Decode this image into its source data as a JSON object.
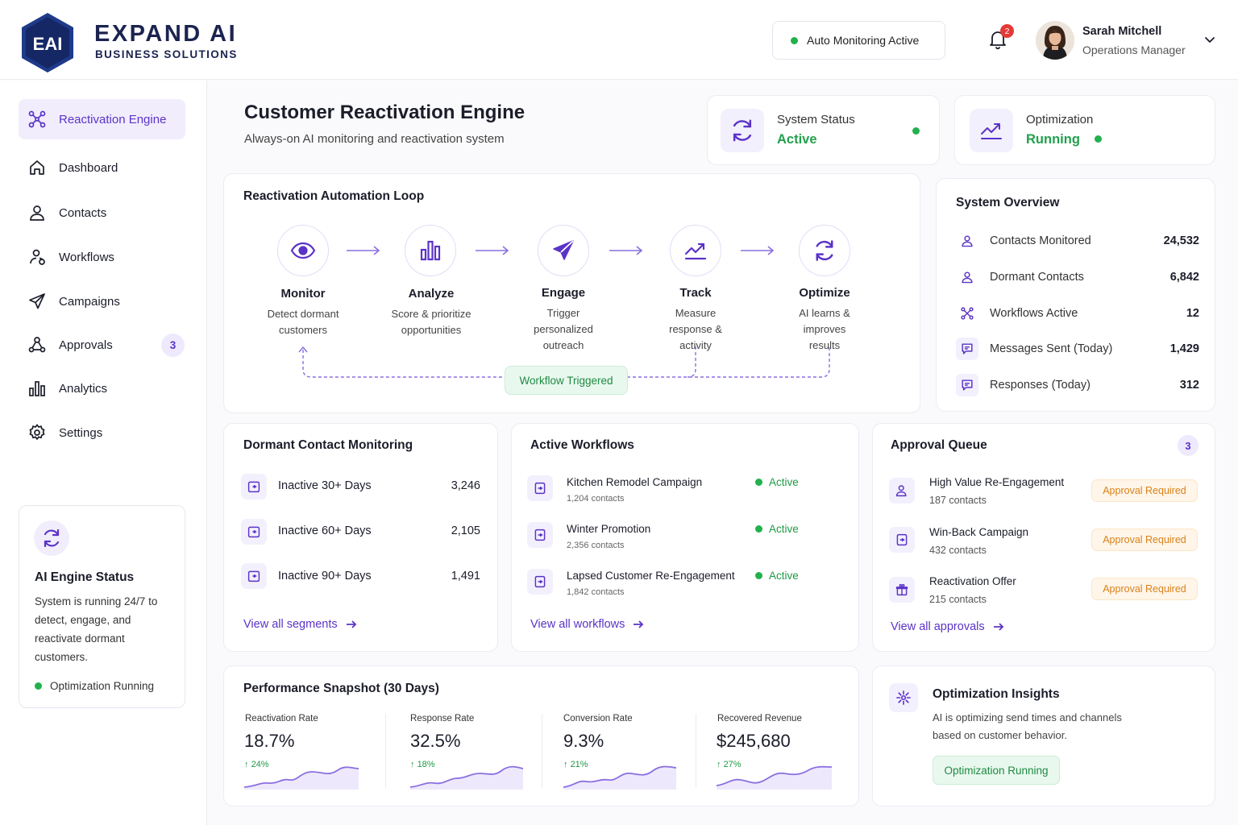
{
  "brand": {
    "initials": "EAI",
    "name": "EXPAND AI",
    "subtitle": "BUSINESS SOLUTIONS"
  },
  "header": {
    "monitoring_label": "Auto Monitoring Active",
    "notification_count": "2",
    "user_name": "Sarah Mitchell",
    "user_role": "Operations Manager"
  },
  "sidebar": {
    "items": [
      {
        "label": "Reactivation Engine",
        "icon": "network-icon",
        "active": true
      },
      {
        "label": "Dashboard",
        "icon": "home-icon"
      },
      {
        "label": "Contacts",
        "icon": "user-icon"
      },
      {
        "label": "Workflows",
        "icon": "workflow-icon"
      },
      {
        "label": "Campaigns",
        "icon": "send-icon"
      },
      {
        "label": "Approvals",
        "icon": "approvals-icon",
        "badge": "3"
      },
      {
        "label": "Analytics",
        "icon": "bar-chart-icon"
      },
      {
        "label": "Settings",
        "icon": "gear-icon"
      }
    ],
    "engine_card": {
      "title": "AI Engine Status",
      "description": "System is running 24/7 to detect, engage, and reactivate dormant customers.",
      "status": "Optimization Running"
    }
  },
  "page": {
    "title": "Customer Reactivation Engine",
    "subtitle": "Always-on AI monitoring and reactivation system"
  },
  "status_cards": [
    {
      "label": "System Status",
      "value": "Active"
    },
    {
      "label": "Optimization",
      "value": "Running"
    }
  ],
  "loop": {
    "title": "Reactivation Automation Loop",
    "steps": [
      {
        "name": "Monitor",
        "desc": "Detect dormant customers",
        "icon": "eye-icon"
      },
      {
        "name": "Analyze",
        "desc": "Score & prioritize opportunities",
        "icon": "bar-chart-icon"
      },
      {
        "name": "Engage",
        "desc": "Trigger personalized outreach",
        "icon": "send-icon"
      },
      {
        "name": "Track",
        "desc": "Measure response & activity",
        "icon": "trend-icon"
      },
      {
        "name": "Optimize",
        "desc": "AI learns & improves results",
        "icon": "refresh-icon"
      }
    ],
    "trigger_label": "Workflow Triggered"
  },
  "overview": {
    "title": "System Overview",
    "rows": [
      {
        "label": "Contacts Monitored",
        "value": "24,532",
        "icon": "user-icon"
      },
      {
        "label": "Dormant Contacts",
        "value": "6,842",
        "icon": "user-icon"
      },
      {
        "label": "Workflows Active",
        "value": "12",
        "icon": "network-icon"
      },
      {
        "label": "Messages Sent (Today)",
        "value": "1,429",
        "icon": "message-icon"
      },
      {
        "label": "Responses (Today)",
        "value": "312",
        "icon": "message-icon"
      }
    ]
  },
  "dormant": {
    "title": "Dormant Contact Monitoring",
    "rows": [
      {
        "label": "Inactive 30+ Days",
        "value": "3,246"
      },
      {
        "label": "Inactive 60+ Days",
        "value": "2,105"
      },
      {
        "label": "Inactive 90+ Days",
        "value": "1,491"
      }
    ],
    "link": "View all segments"
  },
  "workflows": {
    "title": "Active Workflows",
    "rows": [
      {
        "name": "Kitchen Remodel Campaign",
        "contacts": "1,204 contacts",
        "status": "Active"
      },
      {
        "name": "Winter Promotion",
        "contacts": "2,356 contacts",
        "status": "Active"
      },
      {
        "name": "Lapsed Customer Re-Engagement",
        "contacts": "1,842 contacts",
        "status": "Active"
      }
    ],
    "link": "View all workflows"
  },
  "approvals": {
    "title": "Approval Queue",
    "count": "3",
    "rows": [
      {
        "name": "High Value Re-Engagement",
        "contacts": "187 contacts",
        "status": "Approval Required"
      },
      {
        "name": "Win-Back Campaign",
        "contacts": "432 contacts",
        "status": "Approval Required"
      },
      {
        "name": "Reactivation Offer",
        "contacts": "215 contacts",
        "status": "Approval Required"
      }
    ],
    "link": "View all approvals"
  },
  "performance": {
    "title": "Performance Snapshot (30 Days)",
    "kpis": [
      {
        "label": "Reactivation Rate",
        "value": "18.7%",
        "delta": "24%"
      },
      {
        "label": "Response Rate",
        "value": "32.5%",
        "delta": "18%"
      },
      {
        "label": "Conversion Rate",
        "value": "9.3%",
        "delta": "21%"
      },
      {
        "label": "Recovered Revenue",
        "value": "$245,680",
        "delta": "27%"
      }
    ]
  },
  "insights": {
    "title": "Optimization Insights",
    "description": "AI is optimizing send times and channels based on customer behavior.",
    "status": "Optimization Running"
  },
  "colors": {
    "accent": "#5b33c7",
    "success": "#22b14c",
    "warning": "#d9821b",
    "navy": "#1b2350"
  }
}
